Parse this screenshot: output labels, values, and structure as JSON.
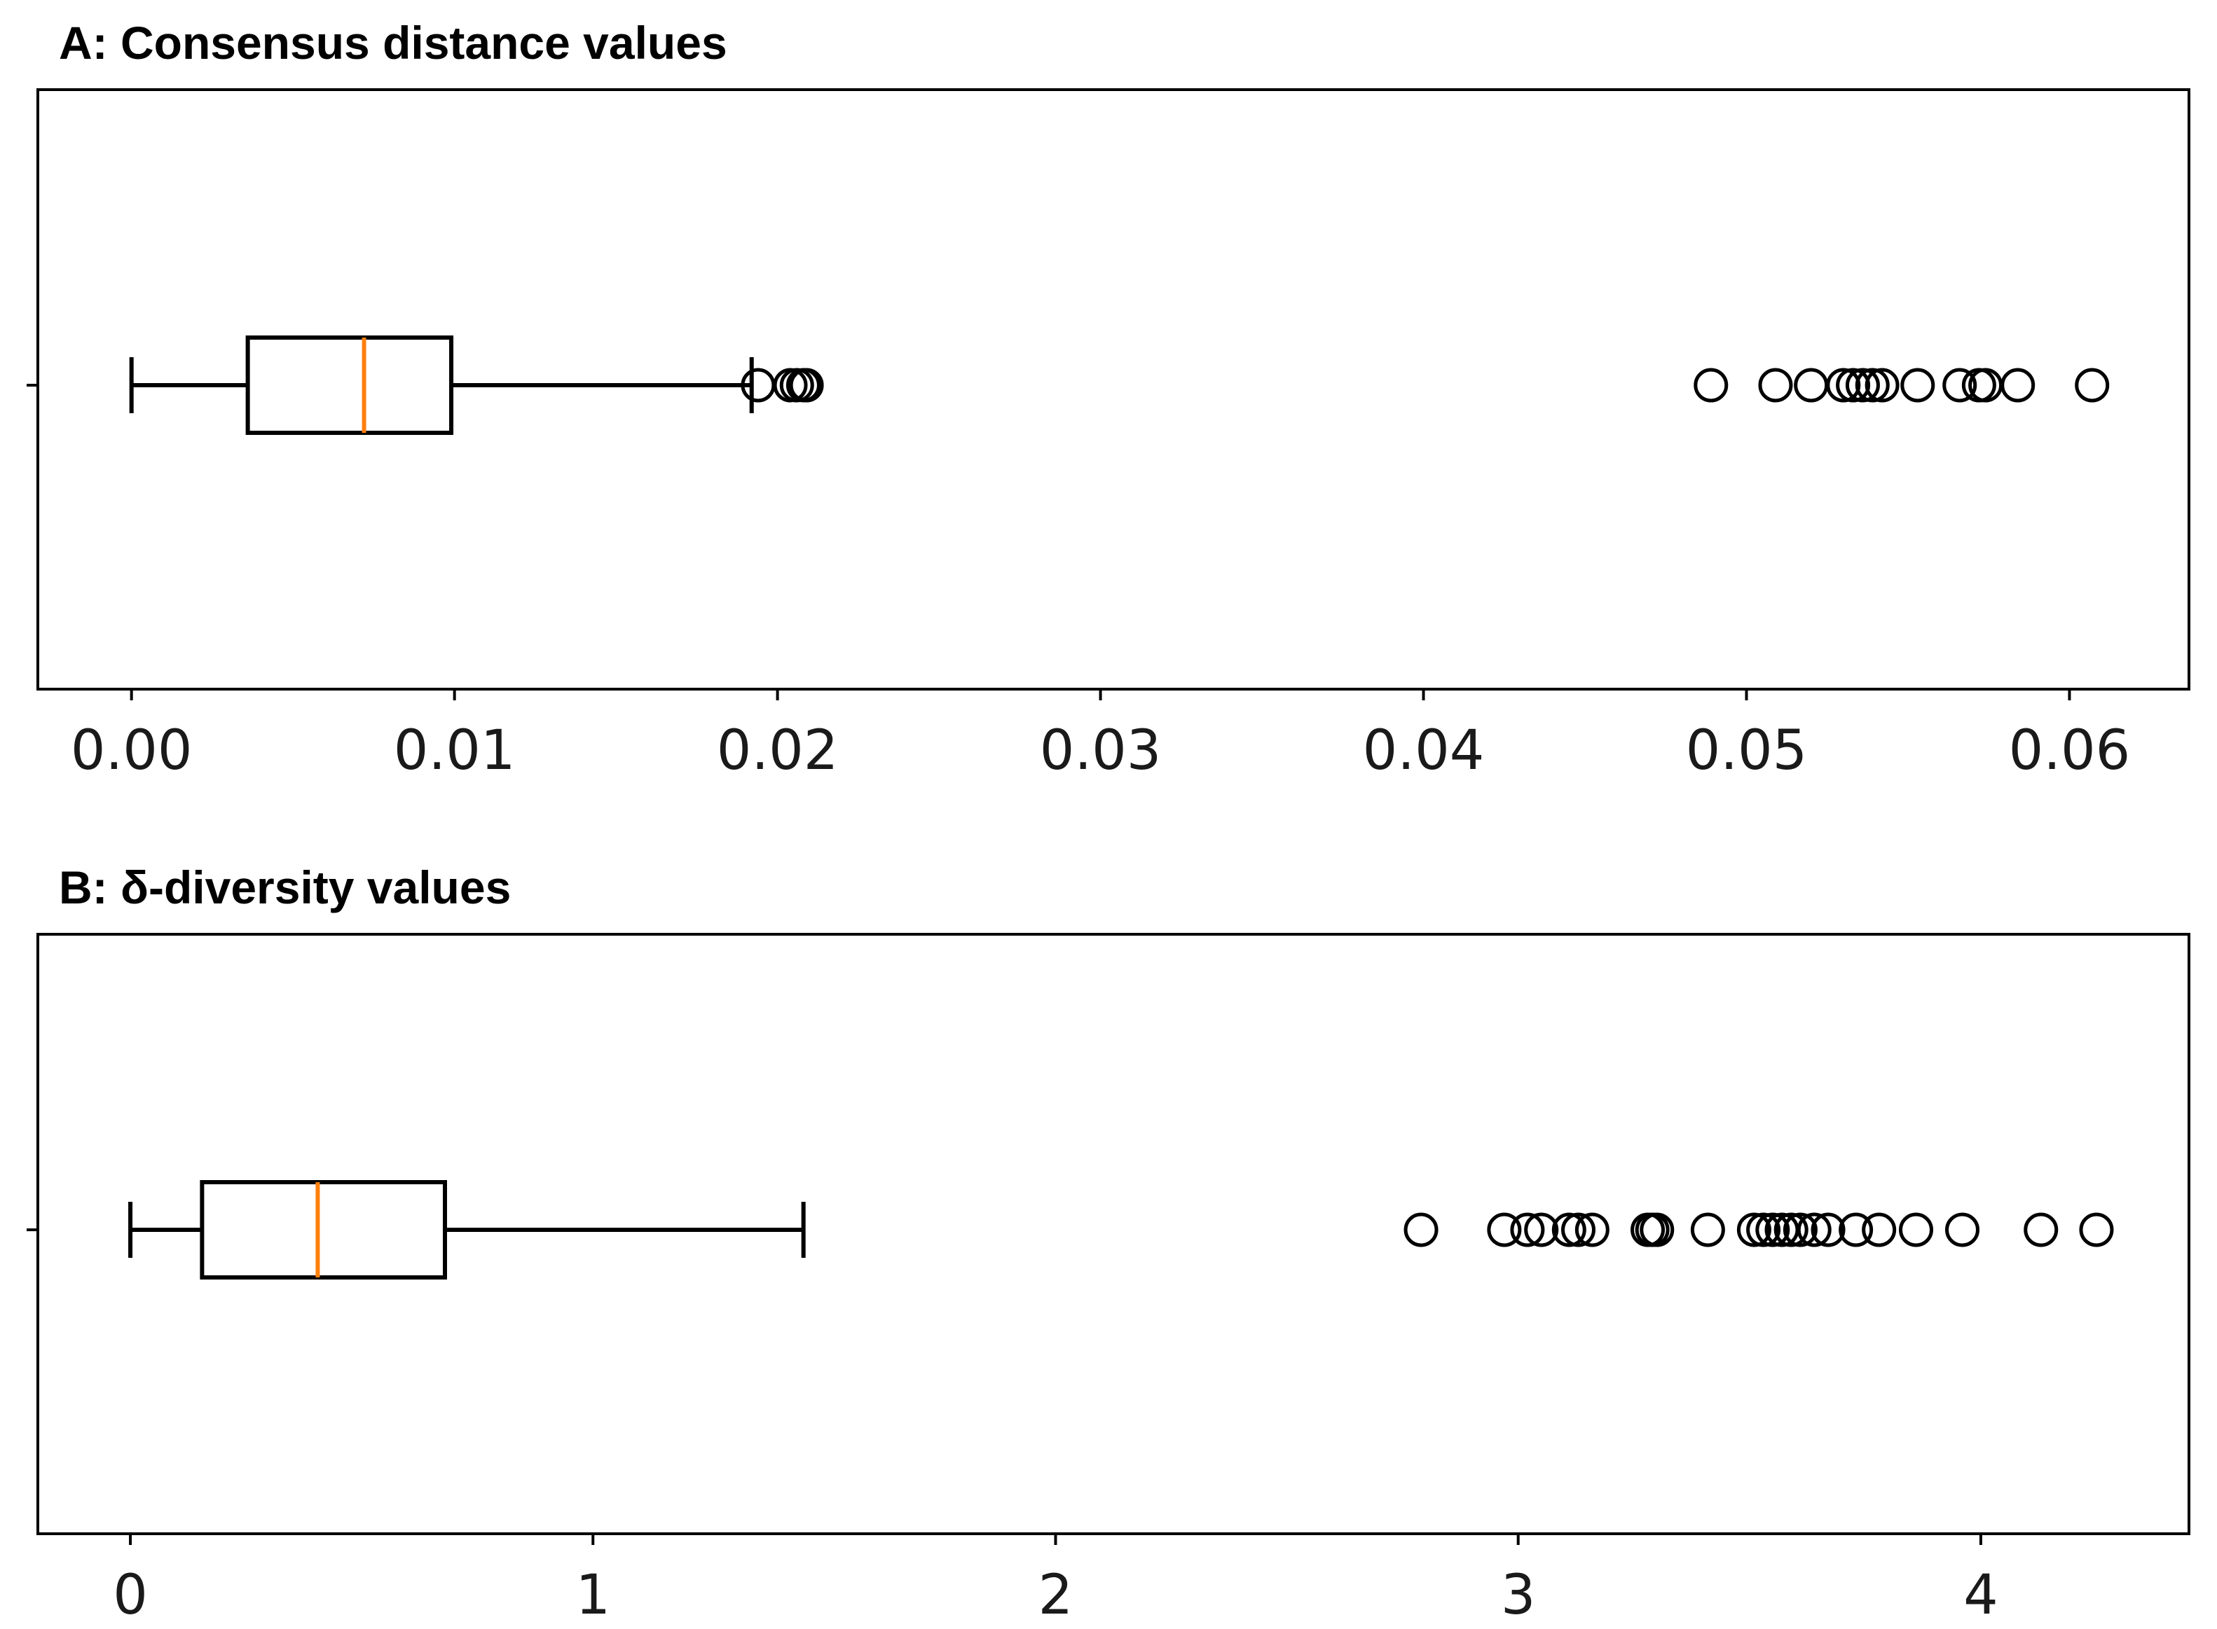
{
  "chart_data": [
    {
      "type": "boxplot",
      "title": "A: Consensus distance values",
      "orientation": "horizontal",
      "xlim": [
        -0.0029,
        0.0637
      ],
      "xticks": [
        0.0,
        0.01,
        0.02,
        0.03,
        0.04,
        0.05,
        0.06
      ],
      "xtick_labels": [
        "0.00",
        "0.01",
        "0.02",
        "0.03",
        "0.04",
        "0.05",
        "0.06"
      ],
      "grid": false,
      "box": {
        "whisker_low": 0.0,
        "q1": 0.0036,
        "median": 0.0072,
        "q3": 0.0099,
        "whisker_high": 0.0192
      },
      "outliers": [
        0.0194,
        0.0204,
        0.0206,
        0.0208,
        0.0209,
        0.0489,
        0.0509,
        0.052,
        0.053,
        0.0533,
        0.0536,
        0.0539,
        0.0542,
        0.0553,
        0.0566,
        0.0572,
        0.0574,
        0.0584,
        0.0607
      ],
      "colors": {
        "box": "#000000",
        "median": "#ff7f0e"
      }
    },
    {
      "type": "boxplot",
      "title": "B: δ-diversity values",
      "orientation": "horizontal",
      "xlim": [
        -0.2,
        4.45
      ],
      "xticks": [
        0,
        1,
        2,
        3,
        4
      ],
      "xtick_labels": [
        "0",
        "1",
        "2",
        "3",
        "4"
      ],
      "grid": false,
      "box": {
        "whisker_low": 0.0,
        "q1": 0.155,
        "median": 0.405,
        "q3": 0.68,
        "whisker_high": 1.455
      },
      "outliers": [
        2.79,
        2.97,
        3.02,
        3.05,
        3.11,
        3.13,
        3.16,
        3.28,
        3.29,
        3.3,
        3.41,
        3.51,
        3.53,
        3.55,
        3.57,
        3.59,
        3.61,
        3.64,
        3.67,
        3.73,
        3.78,
        3.86,
        3.96,
        4.13,
        4.25
      ],
      "colors": {
        "box": "#000000",
        "median": "#ff7f0e"
      }
    }
  ]
}
